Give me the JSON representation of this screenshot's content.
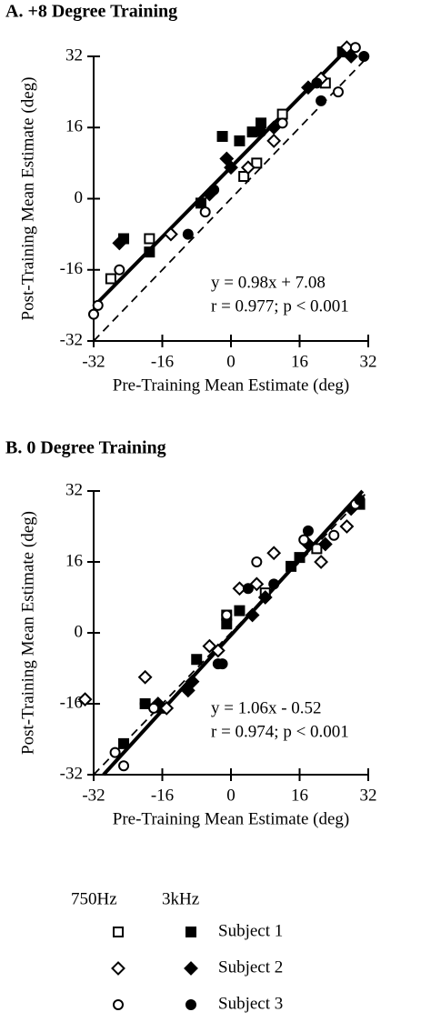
{
  "chart_data": [
    {
      "type": "scatter",
      "title": "A. +8 Degree Training",
      "x_label": "Pre-Training Mean Estimate (deg)",
      "y_label": "Post-Training Mean Estimate (deg)",
      "xlim": [
        -32,
        32
      ],
      "ylim": [
        -32,
        32
      ],
      "xticks": [
        -32,
        -16,
        0,
        16,
        32
      ],
      "yticks": [
        -32,
        -16,
        0,
        16,
        32
      ],
      "fit": {
        "slope": 0.98,
        "intercept": 7.08
      },
      "identity_line": true,
      "annotations": [
        "y = 0.98x + 7.08",
        "r = 0.977; p < 0.001"
      ],
      "series": [
        {
          "marker": "square",
          "filled": false,
          "color": "#000000",
          "x": [
            -28,
            -19,
            3,
            6,
            12,
            22
          ],
          "values": [
            -18,
            -9,
            5,
            8,
            19,
            26
          ]
        },
        {
          "marker": "square",
          "filled": true,
          "color": "#000000",
          "x": [
            -25,
            -19,
            -7,
            -2,
            2,
            5,
            7,
            26
          ],
          "values": [
            -9,
            -12,
            -1,
            14,
            13,
            15,
            17,
            33
          ]
        },
        {
          "marker": "diamond",
          "filled": false,
          "color": "#000000",
          "x": [
            -14,
            4,
            10,
            21,
            27
          ],
          "values": [
            -8,
            7,
            13,
            27,
            34
          ]
        },
        {
          "marker": "diamond",
          "filled": true,
          "color": "#000000",
          "x": [
            -26,
            -5,
            -1,
            0,
            10,
            18,
            28
          ],
          "values": [
            -10,
            1,
            9,
            7,
            16,
            25,
            32
          ]
        },
        {
          "marker": "circle",
          "filled": false,
          "color": "#000000",
          "x": [
            -32,
            -31,
            -26,
            -6,
            12,
            25,
            29
          ],
          "values": [
            -26,
            -24,
            -16,
            -3,
            17,
            24,
            34
          ]
        },
        {
          "marker": "circle",
          "filled": true,
          "color": "#000000",
          "x": [
            -10,
            -4,
            7,
            20,
            21,
            31
          ],
          "values": [
            -8,
            2,
            15,
            26,
            22,
            32
          ]
        }
      ]
    },
    {
      "type": "scatter",
      "title": "B. 0 Degree Training",
      "x_label": "Pre-Training Mean Estimate (deg)",
      "y_label": "Post-Training Mean Estimate (deg)",
      "xlim": [
        -32,
        32
      ],
      "ylim": [
        -32,
        32
      ],
      "xticks": [
        -32,
        -16,
        0,
        16,
        32
      ],
      "yticks": [
        -32,
        -16,
        0,
        16,
        32
      ],
      "fit": {
        "slope": 1.06,
        "intercept": -0.52
      },
      "identity_line": true,
      "annotations": [
        "y = 1.06x - 0.52",
        "r = 0.974; p < 0.001"
      ],
      "series": [
        {
          "marker": "square",
          "filled": false,
          "color": "#000000",
          "x": [
            -1,
            8,
            20
          ],
          "values": [
            4,
            9,
            19
          ]
        },
        {
          "marker": "square",
          "filled": true,
          "color": "#000000",
          "x": [
            -25,
            -20,
            -16,
            -8,
            -1,
            2,
            14,
            16,
            30
          ],
          "values": [
            -25,
            -16,
            -17,
            -6,
            2,
            5,
            15,
            17,
            29
          ]
        },
        {
          "marker": "diamond",
          "filled": false,
          "color": "#000000",
          "x": [
            -34,
            -20,
            -15,
            -5,
            -3,
            2,
            6,
            10,
            21,
            27
          ],
          "values": [
            -15,
            -10,
            -17,
            -3,
            -4,
            10,
            11,
            18,
            16,
            24
          ]
        },
        {
          "marker": "diamond",
          "filled": true,
          "color": "#000000",
          "x": [
            -17,
            -10,
            -9,
            5,
            8,
            18,
            22,
            28
          ],
          "values": [
            -16,
            -13,
            -11,
            4,
            8,
            20,
            20,
            28
          ]
        },
        {
          "marker": "circle",
          "filled": false,
          "color": "#000000",
          "x": [
            -27,
            -25,
            -18,
            -1,
            6,
            17,
            24,
            29
          ],
          "values": [
            -27,
            -30,
            -17,
            4,
            16,
            21,
            22,
            29
          ]
        },
        {
          "marker": "circle",
          "filled": true,
          "color": "#000000",
          "x": [
            -20,
            -3,
            -2,
            4,
            10,
            18,
            30
          ],
          "values": [
            -16,
            -7,
            -7,
            10,
            11,
            23,
            30
          ]
        }
      ]
    }
  ],
  "legend": {
    "headers": [
      "750Hz",
      "3kHz"
    ],
    "entries": [
      {
        "label": "Subject 1",
        "marker": "square"
      },
      {
        "label": "Subject 2",
        "marker": "diamond"
      },
      {
        "label": "Subject 3",
        "marker": "circle"
      }
    ]
  }
}
